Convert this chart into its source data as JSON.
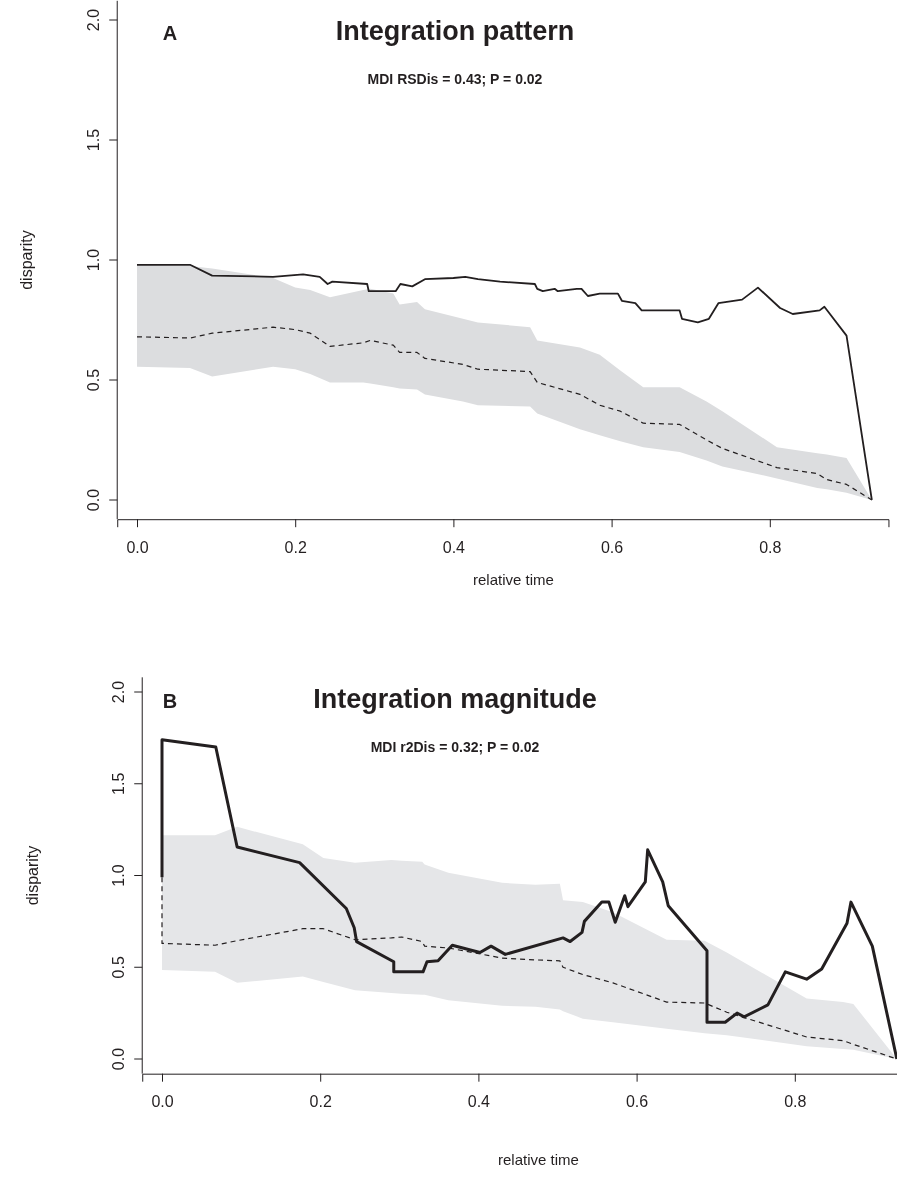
{
  "chart_data": [
    {
      "type": "line",
      "title": "Integration pattern",
      "subtitle": "MDI RSDis = 0.43; P = 0.02",
      "annotations": [
        "A"
      ],
      "xlabel": "relative time",
      "ylabel": "disparity",
      "xlim": [
        -0.025,
        0.95
      ],
      "ylim": [
        -0.08,
        2.08
      ],
      "xticks": [
        {
          "value": 0,
          "label": "0.0"
        },
        0.2,
        0.4,
        0.6,
        0.8
      ],
      "yticks": [
        {
          "value": 0,
          "label": "0.0"
        },
        {
          "value": 0.5,
          "label": "0.5"
        },
        {
          "value": 1,
          "label": "1.0"
        },
        {
          "value": 1.5,
          "label": "1.5"
        },
        {
          "value": 2,
          "label": "2.0"
        }
      ],
      "series": [
        {
          "color": "#231f20",
          "line_style": "dashed",
          "x": [
            0,
            0.067,
            0.095,
            0.172,
            0.2,
            0.219,
            0.244,
            0.286,
            0.295,
            0.324,
            0.332,
            0.354,
            0.364,
            0.412,
            0.431,
            0.497,
            0.506,
            0.56,
            0.585,
            0.611,
            0.64,
            0.686,
            0.72,
            0.74,
            0.809,
            0.86,
            0.872,
            0.897,
            0.929
          ],
          "values": [
            0.68,
            0.675,
            0.695,
            0.72,
            0.71,
            0.695,
            0.64,
            0.655,
            0.665,
            0.645,
            0.615,
            0.615,
            0.59,
            0.565,
            0.545,
            0.535,
            0.49,
            0.44,
            0.395,
            0.37,
            0.32,
            0.315,
            0.25,
            0.215,
            0.135,
            0.11,
            0.085,
            0.065,
            0
          ],
          "upper": [
            0.98,
            0.975,
            0.965,
            0.925,
            0.885,
            0.875,
            0.845,
            0.875,
            0.88,
            0.86,
            0.815,
            0.825,
            0.795,
            0.755,
            0.74,
            0.72,
            0.665,
            0.635,
            0.605,
            0.54,
            0.47,
            0.47,
            0.41,
            0.37,
            0.22,
            0.195,
            0.19,
            0.175,
            0
          ],
          "lower": [
            0.555,
            0.55,
            0.515,
            0.555,
            0.545,
            0.525,
            0.49,
            0.49,
            0.485,
            0.47,
            0.465,
            0.46,
            0.44,
            0.41,
            0.395,
            0.39,
            0.36,
            0.295,
            0.27,
            0.245,
            0.22,
            0.2,
            0.165,
            0.14,
            0.09,
            0.05,
            0.045,
            0.03,
            0
          ]
        },
        {
          "color": "#231f20",
          "line_style": "solid",
          "x": [
            0,
            0.067,
            0.095,
            0.172,
            0.21,
            0.231,
            0.241,
            0.247,
            0.291,
            0.293,
            0.327,
            0.333,
            0.348,
            0.364,
            0.4,
            0.415,
            0.431,
            0.459,
            0.503,
            0.506,
            0.513,
            0.528,
            0.532,
            0.556,
            0.562,
            0.57,
            0.585,
            0.608,
            0.613,
            0.63,
            0.638,
            0.686,
            0.689,
            0.709,
            0.723,
            0.735,
            0.765,
            0.785,
            0.813,
            0.829,
            0.863,
            0.869,
            0.897,
            0.929
          ],
          "values": [
            0.98,
            0.98,
            0.935,
            0.93,
            0.94,
            0.93,
            0.9,
            0.91,
            0.9,
            0.87,
            0.87,
            0.9,
            0.89,
            0.92,
            0.925,
            0.93,
            0.92,
            0.91,
            0.9,
            0.88,
            0.87,
            0.88,
            0.87,
            0.88,
            0.88,
            0.85,
            0.86,
            0.86,
            0.83,
            0.82,
            0.79,
            0.79,
            0.755,
            0.74,
            0.755,
            0.82,
            0.835,
            0.885,
            0.8,
            0.775,
            0.79,
            0.805,
            0.685,
            0
          ]
        }
      ]
    },
    {
      "type": "line",
      "title": "Integration magnitude",
      "subtitle": "MDI r2Dis = 0.32; P = 0.02",
      "annotations": [
        "B"
      ],
      "xlabel": "relative time",
      "ylabel": "disparity",
      "xlim": [
        -0.025,
        0.93
      ],
      "ylim": [
        -0.08,
        2.08
      ],
      "xticks": [
        {
          "value": 0,
          "label": "0.0"
        },
        0.2,
        0.4,
        0.6,
        0.8
      ],
      "yticks": [
        {
          "value": 0,
          "label": "0.0"
        },
        {
          "value": 0.5,
          "label": "0.5"
        },
        {
          "value": 1,
          "label": "1.0"
        },
        {
          "value": 1.5,
          "label": "1.5"
        },
        {
          "value": 2,
          "label": "2.0"
        }
      ],
      "series": [
        {
          "color": "#231f20",
          "line_style": "dashed",
          "x": [
            0,
            0,
            0.067,
            0.095,
            0.178,
            0.204,
            0.244,
            0.29,
            0.303,
            0.329,
            0.332,
            0.362,
            0.43,
            0.472,
            0.503,
            0.507,
            0.532,
            0.57,
            0.638,
            0.686,
            0.714,
            0.815,
            0.861,
            0.874,
            0.929
          ],
          "values": [
            0.99,
            0.63,
            0.62,
            0.645,
            0.71,
            0.71,
            0.65,
            0.66,
            0.665,
            0.64,
            0.615,
            0.605,
            0.55,
            0.54,
            0.535,
            0.5,
            0.46,
            0.415,
            0.31,
            0.305,
            0.255,
            0.12,
            0.1,
            0.08,
            0
          ],
          "upper": [
            1.22,
            1.22,
            1.22,
            1.265,
            1.17,
            1.095,
            1.07,
            1.085,
            1.08,
            1.075,
            1.06,
            1.015,
            0.96,
            0.95,
            0.955,
            0.865,
            0.855,
            0.8,
            0.65,
            0.645,
            0.58,
            0.33,
            0.31,
            0.3,
            0
          ],
          "lower": [
            0.485,
            0.485,
            0.475,
            0.415,
            0.45,
            0.42,
            0.375,
            0.36,
            0.355,
            0.35,
            0.35,
            0.32,
            0.29,
            0.285,
            0.27,
            0.26,
            0.22,
            0.2,
            0.165,
            0.14,
            0.13,
            0.07,
            0.055,
            0.05,
            0
          ]
        },
        {
          "color": "#231f20",
          "line_style": "solid",
          "x": [
            0,
            0,
            0.068,
            0.095,
            0.174,
            0.233,
            0.243,
            0.246,
            0.293,
            0.293,
            0.33,
            0.335,
            0.349,
            0.367,
            0.402,
            0.416,
            0.434,
            0.507,
            0.516,
            0.531,
            0.534,
            0.556,
            0.565,
            0.573,
            0.585,
            0.589,
            0.611,
            0.614,
            0.633,
            0.64,
            0.689,
            0.689,
            0.712,
            0.727,
            0.736,
            0.766,
            0.788,
            0.815,
            0.834,
            0.866,
            0.871,
            0.898,
            0.929
          ],
          "values": [
            0.99,
            1.74,
            1.7,
            1.155,
            1.07,
            0.82,
            0.715,
            0.64,
            0.53,
            0.475,
            0.475,
            0.53,
            0.535,
            0.62,
            0.58,
            0.615,
            0.57,
            0.66,
            0.64,
            0.69,
            0.75,
            0.855,
            0.855,
            0.745,
            0.89,
            0.83,
            0.965,
            1.14,
            0.965,
            0.835,
            0.59,
            0.2,
            0.2,
            0.25,
            0.23,
            0.295,
            0.475,
            0.435,
            0.49,
            0.74,
            0.855,
            0.615,
            0
          ]
        }
      ]
    }
  ]
}
